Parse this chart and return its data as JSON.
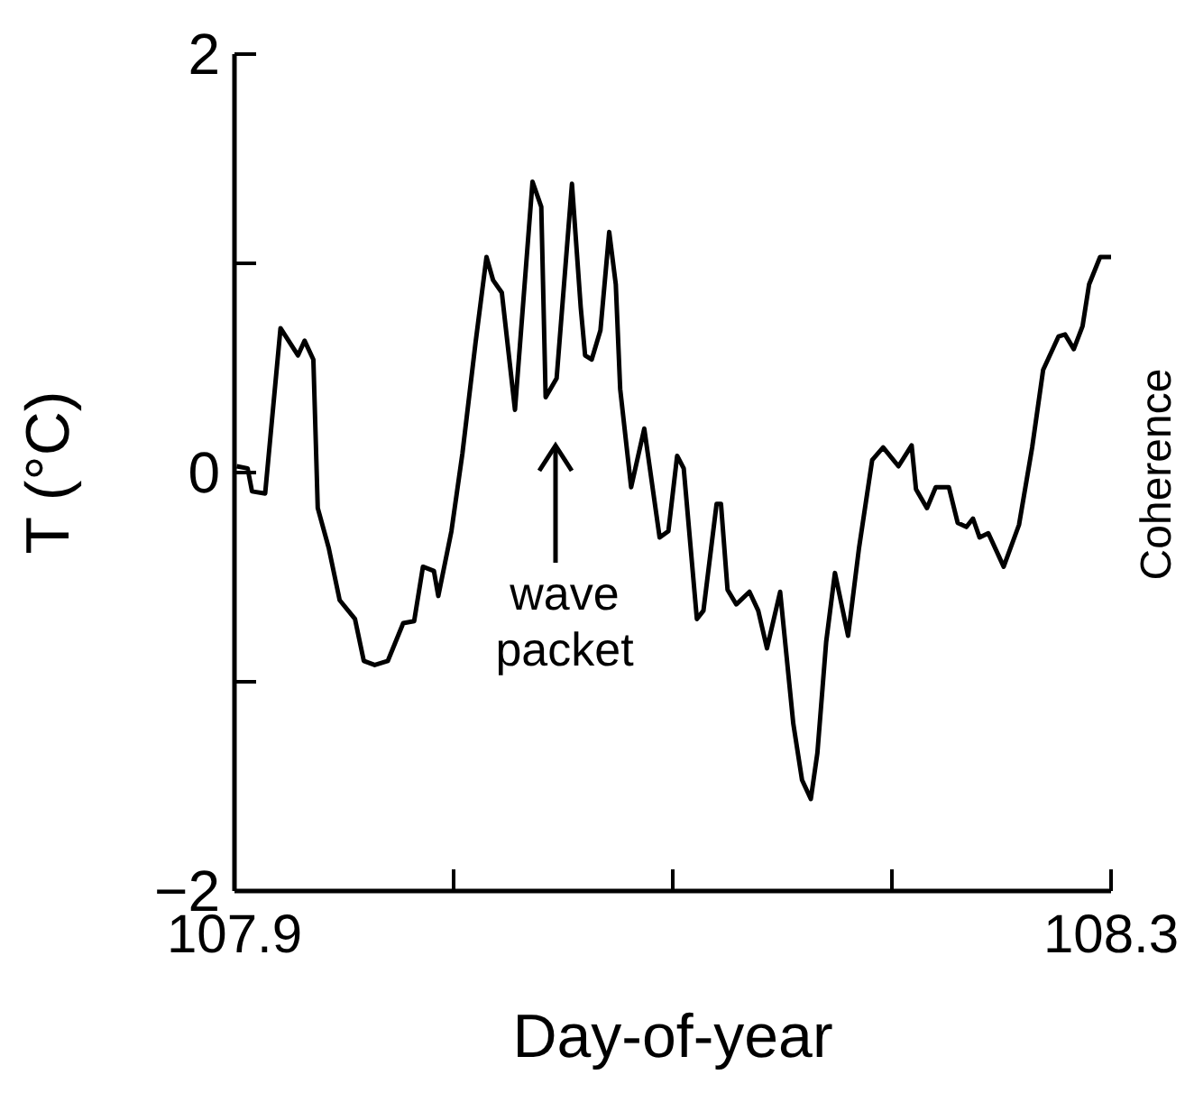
{
  "chart_data": {
    "type": "line",
    "xlabel": "Day-of-year",
    "ylabel": "T (°C)",
    "x": [
      107.901,
      107.906,
      107.908,
      107.914,
      107.921,
      107.929,
      107.932,
      107.936,
      107.938,
      107.943,
      107.948,
      107.955,
      107.959,
      107.964,
      107.97,
      107.977,
      107.982,
      107.986,
      107.991,
      107.993,
      107.999,
      108.004,
      108.01,
      108.015,
      108.018,
      108.022,
      108.028,
      108.036,
      108.04,
      108.042,
      108.047,
      108.054,
      108.058,
      108.06,
      108.063,
      108.067,
      108.071,
      108.074,
      108.076,
      108.081,
      108.087,
      108.094,
      108.098,
      108.102,
      108.105,
      108.111,
      108.114,
      108.12,
      108.122,
      108.125,
      108.129,
      108.135,
      108.139,
      108.143,
      108.149,
      108.155,
      108.159,
      108.163,
      108.166,
      108.17,
      108.174,
      108.18,
      108.185,
      108.191,
      108.196,
      108.203,
      108.209,
      108.211,
      108.216,
      108.22,
      108.226,
      108.23,
      108.234,
      108.237,
      108.24,
      108.244,
      108.251,
      108.258,
      108.264,
      108.269,
      108.276,
      108.279,
      108.283,
      108.287,
      108.29,
      108.295,
      108.3
    ],
    "series": [
      {
        "color": "#000000",
        "values": [
          0.03,
          0.02,
          -0.09,
          -0.1,
          0.69,
          0.56,
          0.63,
          0.54,
          -0.17,
          -0.36,
          -0.61,
          -0.7,
          -0.9,
          -0.92,
          -0.9,
          -0.72,
          -0.71,
          -0.45,
          -0.47,
          -0.59,
          -0.28,
          0.09,
          0.62,
          1.03,
          0.92,
          0.86,
          0.3,
          1.39,
          1.27,
          0.36,
          0.45,
          1.38,
          0.79,
          0.56,
          0.54,
          0.68,
          1.15,
          0.9,
          0.4,
          -0.07,
          0.21,
          -0.31,
          -0.28,
          0.08,
          0.02,
          -0.7,
          -0.66,
          -0.15,
          -0.15,
          -0.56,
          -0.63,
          -0.57,
          -0.66,
          -0.84,
          -0.57,
          -1.2,
          -1.47,
          -1.56,
          -1.34,
          -0.81,
          -0.48,
          -0.78,
          -0.36,
          0.06,
          0.12,
          0.03,
          0.13,
          -0.08,
          -0.17,
          -0.07,
          -0.07,
          -0.24,
          -0.26,
          -0.22,
          -0.31,
          -0.29,
          -0.45,
          -0.25,
          0.12,
          0.49,
          0.65,
          0.66,
          0.59,
          0.7,
          0.9,
          1.03,
          1.03
        ]
      }
    ],
    "xlim": [
      107.9,
      108.3
    ],
    "xticks": [
      107.9,
      {
        "value": 108.0,
        "label": null
      },
      {
        "value": 108.1,
        "label": null
      },
      {
        "value": 108.2,
        "label": null
      },
      108.3
    ],
    "ylim": [
      -2,
      2
    ],
    "yticks": [
      -2,
      {
        "value": -1,
        "label": null
      },
      0,
      {
        "value": 1,
        "label": null
      },
      2
    ],
    "grid": false,
    "legend": false,
    "marker": "none",
    "line_style": "solid",
    "annotations": [
      "wave packet",
      "Coherence"
    ]
  }
}
